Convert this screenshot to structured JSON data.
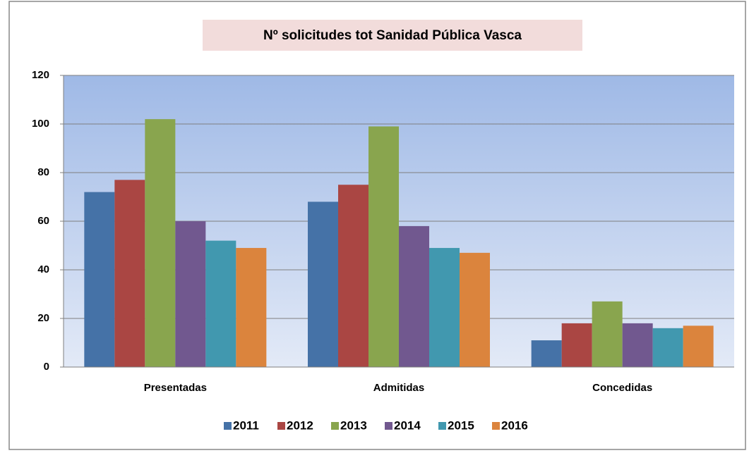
{
  "chart_data": {
    "type": "bar",
    "title": "Nº solicitudes tot Sanidad Pública Vasca",
    "categories": [
      "Presentadas",
      "Admitidas",
      "Concedidas"
    ],
    "series": [
      {
        "name": "2011",
        "color": "#4572a7",
        "values": [
          72,
          68,
          11
        ]
      },
      {
        "name": "2012",
        "color": "#aa4643",
        "values": [
          77,
          75,
          18
        ]
      },
      {
        "name": "2013",
        "color": "#89a54e",
        "values": [
          102,
          99,
          27
        ]
      },
      {
        "name": "2014",
        "color": "#71588f",
        "values": [
          60,
          58,
          18
        ]
      },
      {
        "name": "2015",
        "color": "#4198af",
        "values": [
          52,
          49,
          16
        ]
      },
      {
        "name": "2016",
        "color": "#db843d",
        "values": [
          49,
          47,
          17
        ]
      }
    ],
    "ylim": [
      0,
      120
    ],
    "yticks": [
      0,
      20,
      40,
      60,
      80,
      100,
      120
    ],
    "grid": true,
    "legend": "bottom"
  }
}
